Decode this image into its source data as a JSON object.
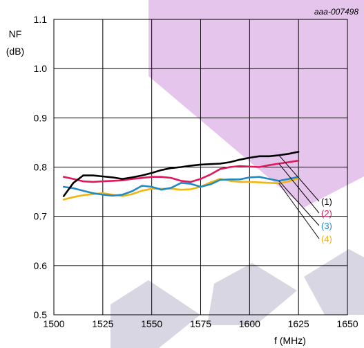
{
  "chart_data": {
    "type": "line",
    "reference": "aaa-007498",
    "ylabel": [
      "NF",
      "(dB)"
    ],
    "xlabel": "f (MHz)",
    "xlim": [
      1500,
      1650
    ],
    "ylim": [
      0.5,
      1.1
    ],
    "x_ticks": [
      "1500",
      "1525",
      "1550",
      "1575",
      "1600",
      "1625",
      "1650"
    ],
    "y_ticks": [
      "0.5",
      "0.6",
      "0.7",
      "0.8",
      "0.9",
      "1.0",
      "1.1"
    ],
    "grid": true,
    "series": [
      {
        "name": "(1)",
        "color": "#000000",
        "x": [
          1505,
          1510,
          1515,
          1520,
          1525,
          1530,
          1535,
          1540,
          1545,
          1550,
          1555,
          1560,
          1565,
          1570,
          1575,
          1580,
          1585,
          1590,
          1595,
          1600,
          1605,
          1610,
          1615,
          1620,
          1625
        ],
        "y": [
          0.741,
          0.768,
          0.783,
          0.783,
          0.781,
          0.779,
          0.776,
          0.779,
          0.783,
          0.788,
          0.794,
          0.798,
          0.8,
          0.803,
          0.805,
          0.806,
          0.807,
          0.81,
          0.815,
          0.819,
          0.822,
          0.822,
          0.824,
          0.827,
          0.831
        ]
      },
      {
        "name": "(2)",
        "color": "#e0185c",
        "x": [
          1505,
          1510,
          1515,
          1520,
          1525,
          1530,
          1535,
          1540,
          1545,
          1550,
          1555,
          1560,
          1565,
          1570,
          1575,
          1580,
          1585,
          1590,
          1595,
          1600,
          1605,
          1610,
          1615,
          1620,
          1625
        ],
        "y": [
          0.78,
          0.776,
          0.771,
          0.77,
          0.771,
          0.772,
          0.773,
          0.776,
          0.778,
          0.78,
          0.78,
          0.778,
          0.772,
          0.77,
          0.776,
          0.785,
          0.796,
          0.8,
          0.802,
          0.801,
          0.8,
          0.804,
          0.807,
          0.81,
          0.813
        ]
      },
      {
        "name": "(3)",
        "color": "#1f8ac4",
        "x": [
          1505,
          1510,
          1515,
          1520,
          1525,
          1530,
          1535,
          1540,
          1545,
          1550,
          1555,
          1560,
          1565,
          1570,
          1575,
          1580,
          1585,
          1590,
          1595,
          1600,
          1605,
          1610,
          1615,
          1620,
          1625
        ],
        "y": [
          0.76,
          0.757,
          0.752,
          0.747,
          0.744,
          0.742,
          0.744,
          0.751,
          0.762,
          0.76,
          0.754,
          0.758,
          0.768,
          0.766,
          0.76,
          0.765,
          0.774,
          0.775,
          0.775,
          0.779,
          0.78,
          0.776,
          0.772,
          0.776,
          0.78
        ]
      },
      {
        "name": "(4)",
        "color": "#f2b50f",
        "x": [
          1505,
          1510,
          1515,
          1520,
          1525,
          1530,
          1535,
          1540,
          1545,
          1550,
          1555,
          1560,
          1565,
          1570,
          1575,
          1580,
          1585,
          1590,
          1595,
          1600,
          1605,
          1610,
          1615,
          1620,
          1625
        ],
        "y": [
          0.734,
          0.739,
          0.743,
          0.745,
          0.747,
          0.744,
          0.741,
          0.745,
          0.752,
          0.756,
          0.756,
          0.756,
          0.754,
          0.755,
          0.76,
          0.769,
          0.776,
          0.772,
          0.77,
          0.77,
          0.769,
          0.768,
          0.767,
          0.771,
          0.777
        ]
      }
    ]
  }
}
